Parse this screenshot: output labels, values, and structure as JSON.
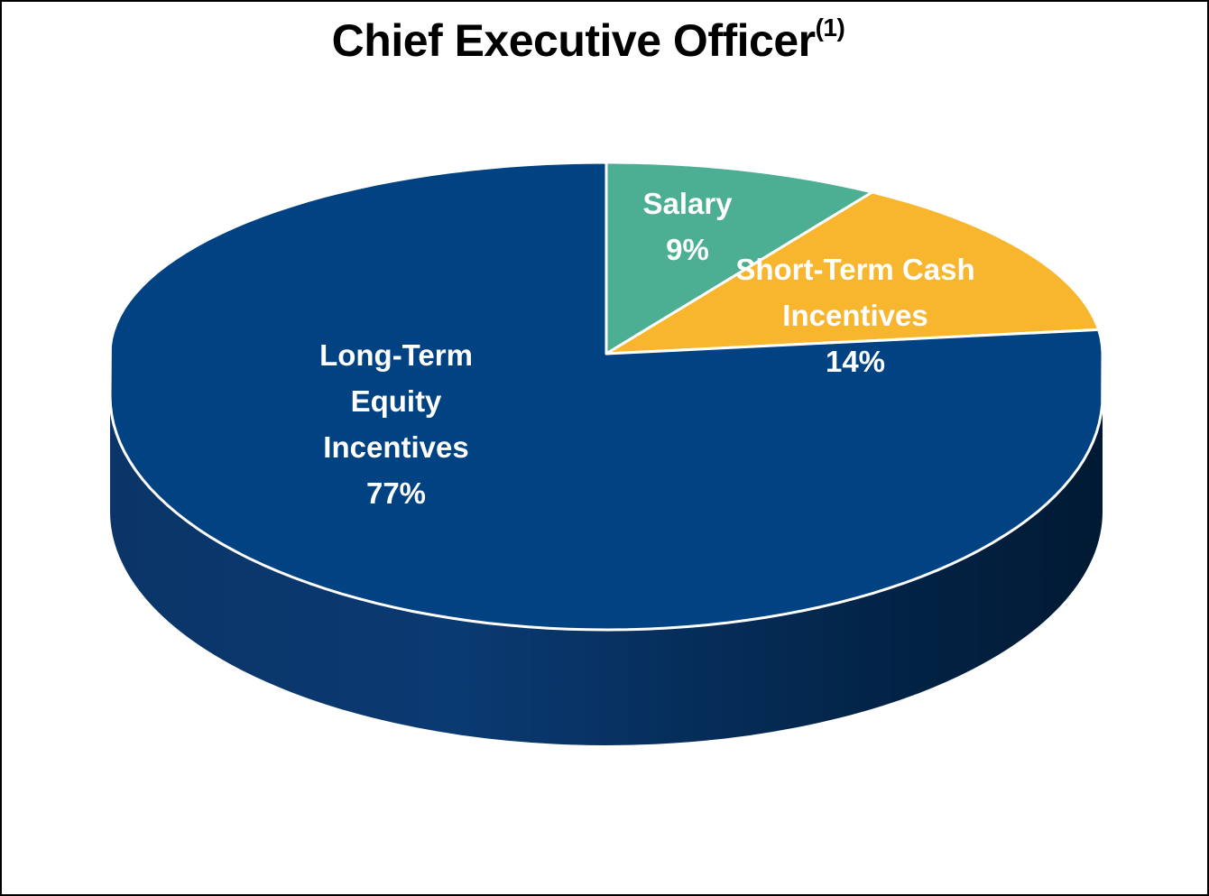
{
  "chart_data": {
    "type": "pie",
    "style": "3d",
    "title": "Chief Executive Officer",
    "title_superscript": "(1)",
    "slices": [
      {
        "label": "Salary",
        "value": 9,
        "value_label": "9%",
        "color": "#4caf93",
        "label_lines": [
          "Salary",
          "9%"
        ]
      },
      {
        "label": "Short-Term Cash Incentives",
        "value": 14,
        "value_label": "14%",
        "color": "#f8b52e",
        "label_lines": [
          "Short-Term Cash",
          "Incentives",
          "14%"
        ]
      },
      {
        "label": "Long-Term Equity Incentives",
        "value": 77,
        "value_label": "77%",
        "color": "#004282",
        "label_lines": [
          "Long-Term",
          "Equity",
          "Incentives",
          "77%"
        ]
      }
    ],
    "start_angle": "12 o'clock",
    "direction": "clockwise",
    "legend": "none"
  }
}
